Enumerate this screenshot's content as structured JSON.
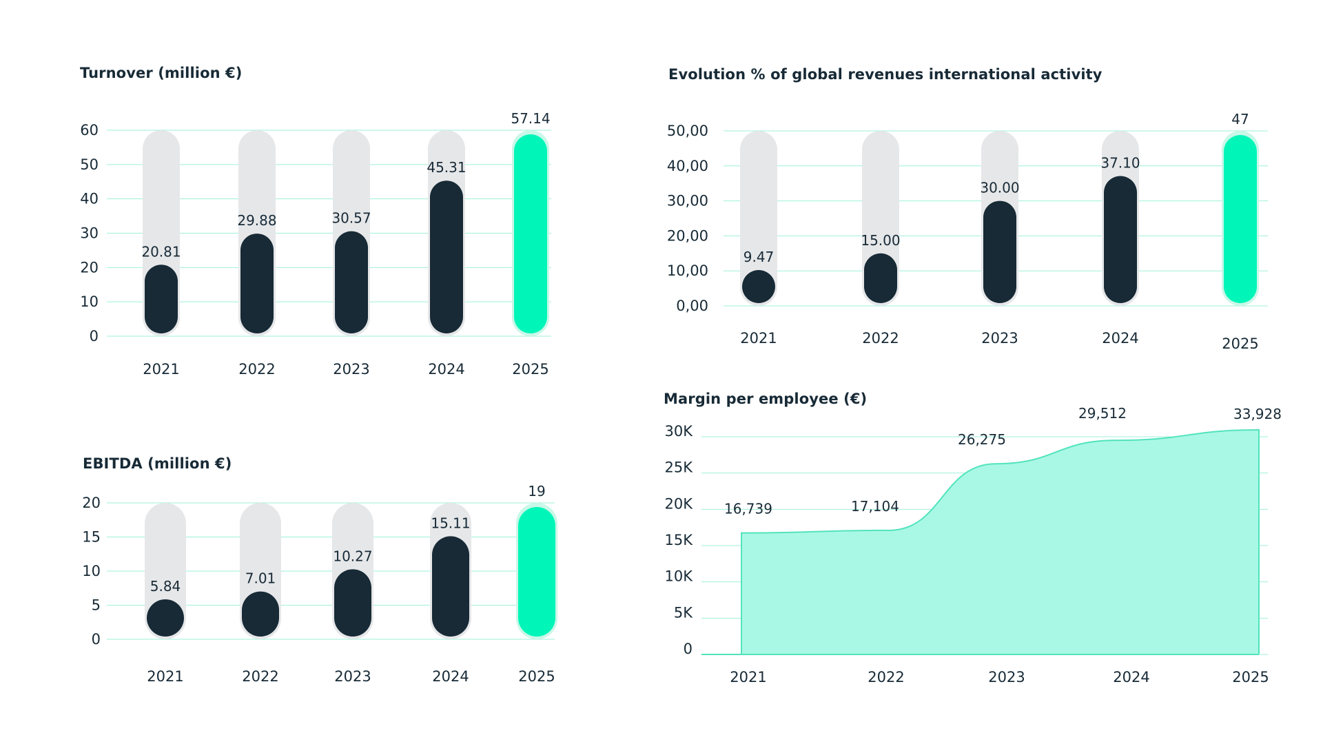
{
  "colors": {
    "dark": "#172a36",
    "accent": "#00f5b9",
    "accent_glow": "#c9f7e8",
    "track": "#e6e7e9",
    "grid": "#9ef0d8",
    "area_fill": "#a9f8e5",
    "area_line": "#52e3bc"
  },
  "chart_data": [
    {
      "id": "turnover",
      "type": "bar",
      "title": "Turnover (million €)",
      "categories": [
        "2021",
        "2022",
        "2023",
        "2024",
        "2025"
      ],
      "values": [
        20.81,
        29.88,
        30.57,
        45.31,
        57.14
      ],
      "value_labels": [
        "20.81",
        "29.88",
        "30.57",
        "45.31",
        "57.14"
      ],
      "highlight_index": 4,
      "ylim": [
        0,
        60
      ],
      "yticks": [
        0,
        10,
        20,
        30,
        40,
        50,
        60
      ],
      "ytick_labels": [
        "0",
        "10",
        "20",
        "30",
        "40",
        "50",
        "60"
      ],
      "grid": true
    },
    {
      "id": "ebitda",
      "type": "bar",
      "title": "EBITDA (million €)",
      "categories": [
        "2021",
        "2022",
        "2023",
        "2024",
        "2025"
      ],
      "values": [
        5.84,
        7.01,
        10.27,
        15.11,
        19
      ],
      "value_labels": [
        "5.84",
        "7.01",
        "10.27",
        "15.11",
        "19"
      ],
      "highlight_index": 4,
      "ylim": [
        0,
        20
      ],
      "yticks": [
        0,
        5,
        10,
        15,
        20
      ],
      "ytick_labels": [
        "0",
        "5",
        "10",
        "15",
        "20"
      ],
      "grid": true
    },
    {
      "id": "international",
      "type": "bar",
      "title": "Evolution % of global revenues international activity",
      "categories": [
        "2021",
        "2022",
        "2023",
        "2024",
        "2025"
      ],
      "values": [
        9.47,
        15.0,
        30.0,
        37.1,
        47
      ],
      "value_labels": [
        "9.47",
        "15.00",
        "30.00",
        "37.10",
        "47"
      ],
      "highlight_index": 4,
      "ylim": [
        0,
        50
      ],
      "yticks": [
        0,
        10,
        20,
        30,
        40,
        50
      ],
      "ytick_labels": [
        "0,00",
        "10,00",
        "20,00",
        "30,00",
        "40,00",
        "50,00"
      ],
      "grid": true
    },
    {
      "id": "margin",
      "type": "area",
      "title": "Margin per employee (€)",
      "categories": [
        "2021",
        "2022",
        "2023",
        "2024",
        "2025"
      ],
      "values": [
        16739,
        17104,
        26275,
        29512,
        33928
      ],
      "value_labels": [
        "16,739",
        "17,104",
        "26,275",
        "29,512",
        "33,928"
      ],
      "ylim": [
        0,
        30000
      ],
      "yticks": [
        0,
        5000,
        10000,
        15000,
        20000,
        25000,
        30000
      ],
      "ytick_labels": [
        "0",
        "5K",
        "10K",
        "15K",
        "20K",
        "25K",
        "30K"
      ],
      "grid": true
    }
  ]
}
